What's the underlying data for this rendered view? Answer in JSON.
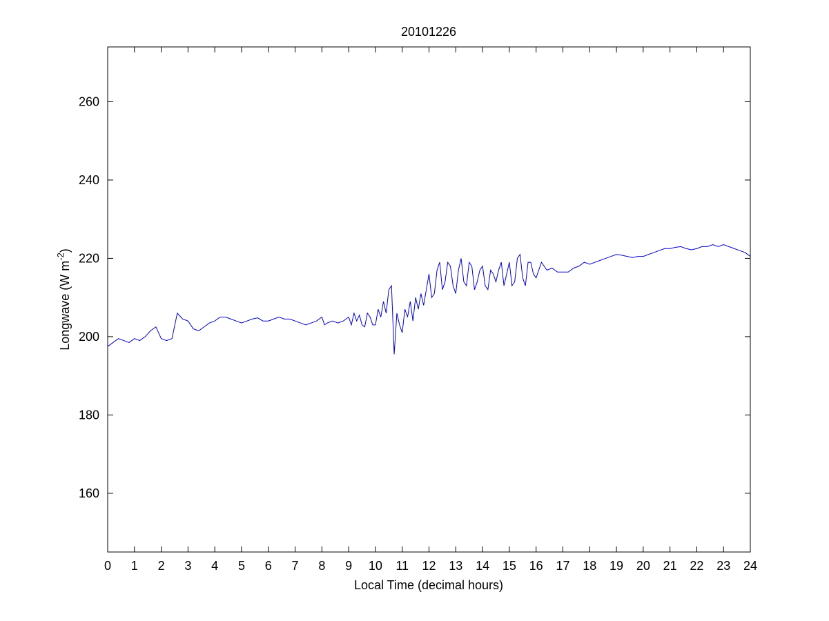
{
  "chart_data": {
    "type": "line",
    "title": "20101226",
    "xlabel": "Local Time (decimal hours)",
    "ylabel": [
      "Longwave (W m",
      "-2",
      ")"
    ],
    "xlim": [
      0,
      24
    ],
    "ylim": [
      145,
      274
    ],
    "xticks": [
      0,
      1,
      2,
      3,
      4,
      5,
      6,
      7,
      8,
      9,
      10,
      11,
      12,
      13,
      14,
      15,
      16,
      17,
      18,
      19,
      20,
      21,
      22,
      23,
      24
    ],
    "yticks": [
      160,
      180,
      200,
      220,
      240,
      260
    ],
    "series": [
      {
        "color": "#0000cc",
        "x": [
          0,
          0.2,
          0.4,
          0.6,
          0.8,
          1.0,
          1.2,
          1.4,
          1.6,
          1.8,
          2.0,
          2.2,
          2.4,
          2.6,
          2.8,
          3.0,
          3.2,
          3.4,
          3.6,
          3.8,
          4.0,
          4.2,
          4.4,
          4.6,
          4.8,
          5.0,
          5.2,
          5.4,
          5.6,
          5.8,
          6.0,
          6.2,
          6.4,
          6.6,
          6.8,
          7.0,
          7.2,
          7.4,
          7.6,
          7.8,
          8.0,
          8.1,
          8.2,
          8.4,
          8.6,
          8.8,
          9.0,
          9.1,
          9.2,
          9.3,
          9.4,
          9.5,
          9.6,
          9.7,
          9.8,
          9.9,
          10.0,
          10.1,
          10.2,
          10.3,
          10.4,
          10.5,
          10.6,
          10.7,
          10.8,
          10.9,
          11.0,
          11.1,
          11.2,
          11.3,
          11.4,
          11.5,
          11.6,
          11.7,
          11.8,
          11.9,
          12.0,
          12.1,
          12.2,
          12.3,
          12.4,
          12.5,
          12.6,
          12.7,
          12.8,
          12.9,
          13.0,
          13.1,
          13.2,
          13.3,
          13.4,
          13.5,
          13.6,
          13.7,
          13.8,
          13.9,
          14.0,
          14.1,
          14.2,
          14.3,
          14.4,
          14.5,
          14.6,
          14.7,
          14.8,
          14.9,
          15.0,
          15.1,
          15.2,
          15.3,
          15.4,
          15.5,
          15.6,
          15.7,
          15.8,
          15.9,
          16.0,
          16.2,
          16.4,
          16.6,
          16.8,
          17.0,
          17.2,
          17.4,
          17.6,
          17.8,
          18.0,
          18.2,
          18.4,
          18.6,
          18.8,
          19.0,
          19.2,
          19.4,
          19.6,
          19.8,
          20.0,
          20.2,
          20.4,
          20.6,
          20.8,
          21.0,
          21.2,
          21.4,
          21.6,
          21.8,
          22.0,
          22.2,
          22.4,
          22.6,
          22.8,
          23.0,
          23.2,
          23.4,
          23.6,
          23.8,
          24.0
        ],
        "values": [
          197.5,
          198.5,
          199.5,
          199,
          198.5,
          199.5,
          199,
          200,
          201.5,
          202.5,
          199.5,
          199,
          199.5,
          206,
          204.5,
          204,
          202,
          201.5,
          202.5,
          203.5,
          204,
          205,
          205,
          204.5,
          204,
          203.5,
          204,
          204.5,
          204.8,
          204,
          204,
          204.5,
          205,
          204.5,
          204.5,
          204,
          203.5,
          203,
          203.5,
          204,
          205,
          203,
          203.5,
          204,
          203.5,
          204,
          205,
          203,
          206,
          204,
          205.5,
          203,
          202.5,
          206,
          205,
          203,
          203,
          207,
          205,
          209,
          206,
          212,
          213,
          195.5,
          206,
          203,
          201,
          207,
          205,
          209,
          204,
          210,
          207,
          211,
          208,
          212,
          216,
          210,
          211,
          217,
          219,
          212,
          214,
          219,
          218,
          213,
          211,
          217,
          220,
          214,
          213,
          219,
          218,
          212,
          214,
          217,
          218,
          213,
          212,
          217,
          216,
          214,
          217,
          219,
          213,
          216,
          219,
          213,
          214,
          220,
          221,
          215,
          213,
          219,
          219,
          216,
          215,
          219,
          217,
          217.5,
          216.5,
          216.5,
          216.5,
          217.5,
          218,
          219,
          218.5,
          219,
          219.5,
          220,
          220.5,
          221,
          220.8,
          220.5,
          220.2,
          220.5,
          220.5,
          221,
          221.5,
          222,
          222.5,
          222.5,
          222.8,
          223,
          222.5,
          222.2,
          222.5,
          223,
          223,
          223.5,
          223,
          223.5,
          223,
          222.5,
          222,
          221.5,
          220.5
        ]
      }
    ]
  }
}
